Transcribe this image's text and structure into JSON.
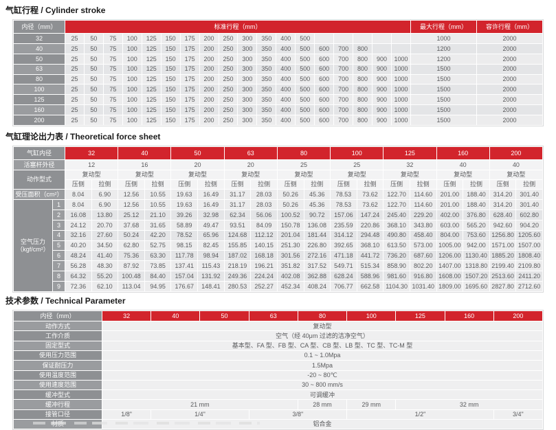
{
  "colors": {
    "accent-red": "#d2242c",
    "gray-1": "#8e9093",
    "gray-2": "#9a9c9f",
    "cell-a": "#ececed",
    "cell-b": "#e4e5e7",
    "cell-light": "#f3f3f4",
    "cell-val": "#efeff0",
    "frame": "#d8d9da"
  },
  "stroke_table": {
    "title": "气缸行程 / Cylinder stroke",
    "col_bore": "内径（mm）",
    "col_std": "标准行程（mm）",
    "col_max": "最大行程（mm）",
    "col_allow": "容许行程（mm）",
    "rows": [
      {
        "bore": "32",
        "strokes": [
          "25",
          "50",
          "75",
          "100",
          "125",
          "150",
          "175",
          "200",
          "250",
          "300",
          "350",
          "400",
          "500",
          "",
          "",
          "",
          "",
          ""
        ],
        "max": "1000",
        "allow": "2000"
      },
      {
        "bore": "40",
        "strokes": [
          "25",
          "50",
          "75",
          "100",
          "125",
          "150",
          "175",
          "200",
          "250",
          "300",
          "350",
          "400",
          "500",
          "600",
          "700",
          "800",
          "",
          ""
        ],
        "max": "1200",
        "allow": "2000"
      },
      {
        "bore": "50",
        "strokes": [
          "25",
          "50",
          "75",
          "100",
          "125",
          "150",
          "175",
          "200",
          "250",
          "300",
          "350",
          "400",
          "500",
          "600",
          "700",
          "800",
          "900",
          "1000"
        ],
        "max": "1200",
        "allow": "2000"
      },
      {
        "bore": "63",
        "strokes": [
          "25",
          "50",
          "75",
          "100",
          "125",
          "150",
          "175",
          "200",
          "250",
          "300",
          "350",
          "400",
          "500",
          "600",
          "700",
          "800",
          "900",
          "1000"
        ],
        "max": "1500",
        "allow": "2000"
      },
      {
        "bore": "80",
        "strokes": [
          "25",
          "50",
          "75",
          "100",
          "125",
          "150",
          "175",
          "200",
          "250",
          "300",
          "350",
          "400",
          "500",
          "600",
          "700",
          "800",
          "900",
          "1000"
        ],
        "max": "1500",
        "allow": "2000"
      },
      {
        "bore": "100",
        "strokes": [
          "25",
          "50",
          "75",
          "100",
          "125",
          "150",
          "175",
          "200",
          "250",
          "300",
          "350",
          "400",
          "500",
          "600",
          "700",
          "800",
          "900",
          "1000"
        ],
        "max": "1500",
        "allow": "2000"
      },
      {
        "bore": "125",
        "strokes": [
          "25",
          "50",
          "75",
          "100",
          "125",
          "150",
          "175",
          "200",
          "250",
          "300",
          "350",
          "400",
          "500",
          "600",
          "700",
          "800",
          "900",
          "1000"
        ],
        "max": "1500",
        "allow": "2000"
      },
      {
        "bore": "160",
        "strokes": [
          "25",
          "50",
          "75",
          "100",
          "125",
          "150",
          "175",
          "200",
          "250",
          "300",
          "350",
          "400",
          "500",
          "600",
          "700",
          "800",
          "900",
          "1000"
        ],
        "max": "1500",
        "allow": "2000"
      },
      {
        "bore": "200",
        "strokes": [
          "25",
          "50",
          "75",
          "100",
          "125",
          "150",
          "175",
          "200",
          "250",
          "300",
          "350",
          "400",
          "500",
          "600",
          "700",
          "800",
          "900",
          "1000"
        ],
        "max": "1500",
        "allow": "2000"
      }
    ]
  },
  "force_table": {
    "title": "气缸理论出力表 / Theoretical force sheet",
    "row_bore_label": "气缸内径",
    "row_rod_label": "活塞杆外径",
    "row_action_label": "动作型式",
    "row_area_label": "受压面积（cm²）",
    "pressure_label": "空气压力\n（kgf/cm²）",
    "action_type": "复动型",
    "push": "压侧",
    "pull": "拉侧",
    "bores": [
      "32",
      "40",
      "50",
      "63",
      "80",
      "100",
      "125",
      "160",
      "200"
    ],
    "rods": [
      "12",
      "16",
      "20",
      "20",
      "25",
      "25",
      "32",
      "40",
      "40"
    ],
    "areas": [
      "8.04",
      "6.90",
      "12.56",
      "10.55",
      "19.63",
      "16.49",
      "31.17",
      "28.03",
      "50.26",
      "45.36",
      "78.53",
      "73.62",
      "122.70",
      "114.60",
      "201.00",
      "188.40",
      "314.20",
      "301.40"
    ],
    "pressure_rows": [
      {
        "p": "1",
        "v": [
          "8.04",
          "6.90",
          "12.56",
          "10.55",
          "19.63",
          "16.49",
          "31.17",
          "28.03",
          "50.26",
          "45.36",
          "78.53",
          "73.62",
          "122.70",
          "114.60",
          "201.00",
          "188.40",
          "314.20",
          "301.40"
        ]
      },
      {
        "p": "2",
        "v": [
          "16.08",
          "13.80",
          "25.12",
          "21.10",
          "39.26",
          "32.98",
          "62.34",
          "56.06",
          "100.52",
          "90.72",
          "157.06",
          "147.24",
          "245.40",
          "229.20",
          "402.00",
          "376.80",
          "628.40",
          "602.80"
        ]
      },
      {
        "p": "3",
        "v": [
          "24.12",
          "20.70",
          "37.68",
          "31.65",
          "58.89",
          "49.47",
          "93.51",
          "84.09",
          "150.78",
          "136.08",
          "235.59",
          "220.86",
          "368.10",
          "343.80",
          "603.00",
          "565.20",
          "942.60",
          "904.20"
        ]
      },
      {
        "p": "4",
        "v": [
          "32.16",
          "27.60",
          "50.24",
          "42.20",
          "78.52",
          "65.96",
          "124.68",
          "112.12",
          "201.04",
          "181.44",
          "314.12",
          "294.48",
          "490.80",
          "458.40",
          "804.00",
          "753.60",
          "1256.80",
          "1205.60"
        ]
      },
      {
        "p": "5",
        "v": [
          "40.20",
          "34.50",
          "62.80",
          "52.75",
          "98.15",
          "82.45",
          "155.85",
          "140.15",
          "251.30",
          "226.80",
          "392.65",
          "368.10",
          "613.50",
          "573.00",
          "1005.00",
          "942.00",
          "1571.00",
          "1507.00"
        ]
      },
      {
        "p": "6",
        "v": [
          "48.24",
          "41.40",
          "75.36",
          "63.30",
          "117.78",
          "98.94",
          "187.02",
          "168.18",
          "301.56",
          "272.16",
          "471.18",
          "441.72",
          "736.20",
          "687.60",
          "1206.00",
          "1130.40",
          "1885.20",
          "1808.40"
        ]
      },
      {
        "p": "7",
        "v": [
          "56.28",
          "48.30",
          "87.92",
          "73.85",
          "137.41",
          "115.43",
          "218.19",
          "196.21",
          "351.82",
          "317.52",
          "549.71",
          "515.34",
          "858.90",
          "802.20",
          "1407.00",
          "1318.80",
          "2199.40",
          "2109.80"
        ]
      },
      {
        "p": "8",
        "v": [
          "64.32",
          "55.20",
          "100.48",
          "84.40",
          "157.04",
          "131.92",
          "249.36",
          "224.24",
          "402.08",
          "362.88",
          "628.24",
          "588.96",
          "981.60",
          "916.80",
          "1608.00",
          "1507.20",
          "2513.60",
          "2411.20"
        ]
      },
      {
        "p": "9",
        "v": [
          "72.36",
          "62.10",
          "113.04",
          "94.95",
          "176.67",
          "148.41",
          "280.53",
          "252.27",
          "452.34",
          "408.24",
          "706.77",
          "662.58",
          "1104.30",
          "1031.40",
          "1809.00",
          "1695.60",
          "2827.80",
          "2712.60"
        ]
      }
    ]
  },
  "param_table": {
    "title": "技术参数 / Technical Parameter",
    "header_label": "内径（mm）",
    "bores": [
      "32",
      "40",
      "50",
      "63",
      "80",
      "100",
      "125",
      "160",
      "200"
    ],
    "rows": [
      {
        "label": "动作方式",
        "values": [
          {
            "text": "复动型",
            "span": 9
          }
        ]
      },
      {
        "label": "工作介质",
        "values": [
          {
            "text": "空气（经 40μm 过滤的洁净空气）",
            "span": 9
          }
        ]
      },
      {
        "label": "固定型式",
        "values": [
          {
            "text": "基本型、FA 型、FB 型、CA 型、CB 型、LB 型、TC 型、TC-M 型",
            "span": 9
          }
        ]
      },
      {
        "label": "使用压力范围",
        "values": [
          {
            "text": "0.1 ~ 1.0Mpa",
            "span": 9
          }
        ]
      },
      {
        "label": "保证耐压力",
        "values": [
          {
            "text": "1.5Mpa",
            "span": 9
          }
        ]
      },
      {
        "label": "使用温度范围",
        "values": [
          {
            "text": "-20 ~ 80℃",
            "span": 9
          }
        ]
      },
      {
        "label": "使用速度范围",
        "values": [
          {
            "text": "30 ~ 800 mm/s",
            "span": 9
          }
        ]
      },
      {
        "label": "缓冲型式",
        "values": [
          {
            "text": "可调缓冲",
            "span": 9
          }
        ]
      },
      {
        "label": "缓冲行程",
        "values": [
          {
            "text": "21 mm",
            "span": 4
          },
          {
            "text": "28 mm",
            "span": 1
          },
          {
            "text": "29 mm",
            "span": 1
          },
          {
            "text": "32 mm",
            "span": 3
          }
        ]
      },
      {
        "label": "接管口径",
        "values": [
          {
            "text": "1/8\"",
            "span": 1
          },
          {
            "text": "1/4\"",
            "span": 2
          },
          {
            "text": "3/8\"",
            "span": 2
          },
          {
            "text": "1/2\"",
            "span": 3
          },
          {
            "text": "3/4\"",
            "span": 1
          }
        ]
      },
      {
        "label": "材质",
        "values": [
          {
            "text": "铝合金",
            "span": 9
          }
        ]
      }
    ]
  }
}
